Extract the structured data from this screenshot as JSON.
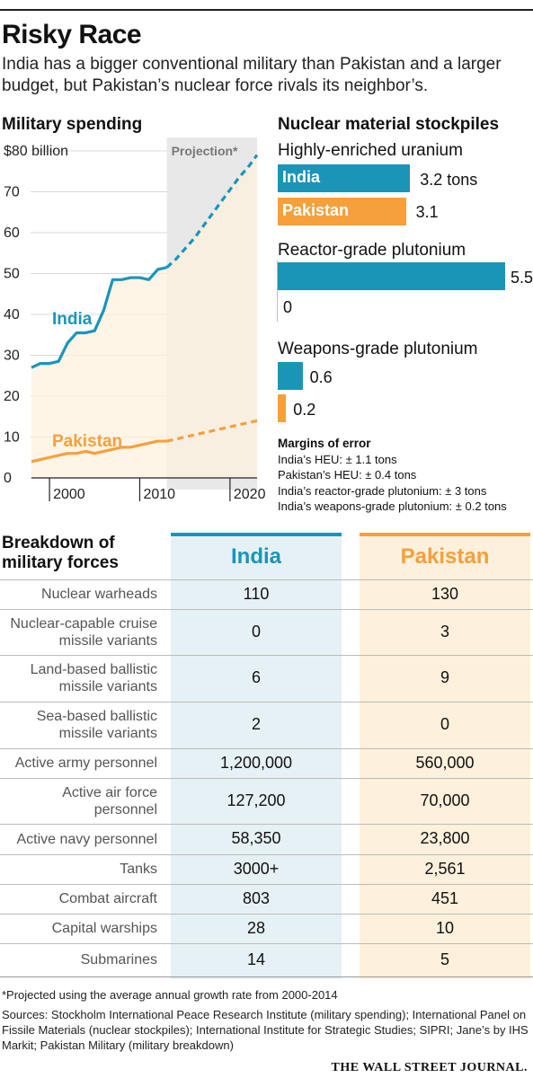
{
  "header": {
    "title": "Risky Race",
    "subtitle": "India has a bigger conventional military than Pakistan and a larger budget, but Pakistan’s nuclear force rivals its neighbor’s."
  },
  "spending": {
    "heading": "Military spending",
    "projection_label": "Projection*"
  },
  "stockpiles": {
    "heading": "Nuclear material stockpiles",
    "heu": {
      "label": "Highly-enriched uranium",
      "india_name": "India",
      "pakistan_name": "Pakistan",
      "india_text": "3.2 tons",
      "pakistan_text": "3.1"
    },
    "reactor": {
      "label": "Reactor-grade plutonium",
      "india_text": "5.5",
      "pakistan_text": "0"
    },
    "weapons": {
      "label": "Weapons-grade plutonium",
      "india_text": "0.6",
      "pakistan_text": "0.2"
    }
  },
  "margins": {
    "title": "Margins of error",
    "lines": [
      "India’s HEU: ± 1.1 tons",
      "Pakistan’s HEU: ± 0.4 tons",
      "India’s reactor-grade plutonium:  ± 3 tons",
      "India’s weapons-grade plutonium: ± 0.2 tons"
    ]
  },
  "forces": {
    "heading_line1": "Breakdown of",
    "heading_line2": "military forces",
    "india_header": "India",
    "pakistan_header": "Pakistan",
    "rows": [
      {
        "label": [
          "Nuclear warheads"
        ],
        "india": "110",
        "pakistan": "130"
      },
      {
        "label": [
          "Nuclear-capable cruise",
          "missile variants"
        ],
        "india": "0",
        "pakistan": "3"
      },
      {
        "label": [
          "Land-based ballistic",
          "missile variants"
        ],
        "india": "6",
        "pakistan": "9"
      },
      {
        "label": [
          "Sea-based ballistic",
          "missile variants"
        ],
        "india": "2",
        "pakistan": "0"
      },
      {
        "label": [
          "Active army personnel"
        ],
        "india": "1,200,000",
        "pakistan": "560,000"
      },
      {
        "label": [
          "Active air force",
          "personnel"
        ],
        "india": "127,200",
        "pakistan": "70,000"
      },
      {
        "label": [
          "Active navy personnel"
        ],
        "india": "58,350",
        "pakistan": "23,800"
      },
      {
        "label": [
          "Tanks"
        ],
        "india": "3000+",
        "pakistan": "2,561"
      },
      {
        "label": [
          "Combat aircraft"
        ],
        "india": "803",
        "pakistan": "451"
      },
      {
        "label": [
          "Capital warships"
        ],
        "india": "28",
        "pakistan": "10"
      },
      {
        "label": [
          "Submarines"
        ],
        "india": "14",
        "pakistan": "5"
      }
    ]
  },
  "footer": {
    "note": "*Projected using the average annual growth rate from 2000-2014",
    "sources": "Sources: Stockholm International Peace Research Institute (military spending); International Panel on Fissile Materials (nuclear stockpiles); International Institute for Strategic Studies; SIPRI; Jane’s by IHS Markit; Pakistan Military (military breakdown)",
    "brand": "THE WALL STREET JOURNAL."
  },
  "colors": {
    "india": "#1a95b8",
    "pakistan": "#f5a03d",
    "projection_bg": "#e8e8e8",
    "india_table_bg": "#e6f1f5",
    "pakistan_table_bg": "#fdf0dc"
  },
  "chart_data": [
    {
      "type": "line",
      "title": "Military spending",
      "ylabel": "$80 billion",
      "yticks": [
        "0",
        "10",
        "20",
        "30",
        "40",
        "50",
        "60",
        "70",
        "$80 billion"
      ],
      "xticks": [
        "2000",
        "2010",
        "2020"
      ],
      "xlim": [
        1998,
        2023
      ],
      "ylim": [
        0,
        80
      ],
      "projection_start": 2013,
      "series": [
        {
          "name": "India",
          "x": [
            1998,
            1999,
            2000,
            2001,
            2002,
            2003,
            2004,
            2005,
            2006,
            2007,
            2008,
            2009,
            2010,
            2011,
            2012,
            2013
          ],
          "values": [
            27,
            28,
            28,
            28.5,
            33,
            35.5,
            35.5,
            36,
            41,
            48.5,
            48.5,
            49,
            49,
            48.5,
            51,
            51.5
          ],
          "projection_x": [
            2013,
            2014,
            2015,
            2016,
            2017,
            2018,
            2019,
            2020,
            2021,
            2022,
            2023
          ],
          "projection_values": [
            51.5,
            53.5,
            56,
            58.5,
            61.5,
            64.5,
            67.5,
            70.5,
            73.5,
            76,
            79
          ]
        },
        {
          "name": "Pakistan",
          "x": [
            1998,
            1999,
            2000,
            2001,
            2002,
            2003,
            2004,
            2005,
            2006,
            2007,
            2008,
            2009,
            2010,
            2011,
            2012,
            2013
          ],
          "values": [
            4,
            4.5,
            5,
            5.5,
            6,
            6,
            6.5,
            6,
            6.5,
            7,
            7.5,
            7.5,
            8,
            8.5,
            9,
            9
          ],
          "projection_x": [
            2013,
            2014,
            2015,
            2016,
            2017,
            2018,
            2019,
            2020,
            2021,
            2022,
            2023
          ],
          "projection_values": [
            9,
            9.5,
            10,
            10.5,
            11,
            11.5,
            12,
            12.5,
            13,
            13.5,
            14
          ]
        }
      ]
    },
    {
      "type": "bar",
      "title": "Nuclear material stockpiles",
      "groups": [
        "Highly-enriched uranium",
        "Reactor-grade plutonium",
        "Weapons-grade plutonium"
      ],
      "series": [
        {
          "name": "India",
          "values": [
            3.2,
            5.5,
            0.6
          ]
        },
        {
          "name": "Pakistan",
          "values": [
            3.1,
            0,
            0.2
          ]
        }
      ],
      "unit": "tons"
    }
  ]
}
